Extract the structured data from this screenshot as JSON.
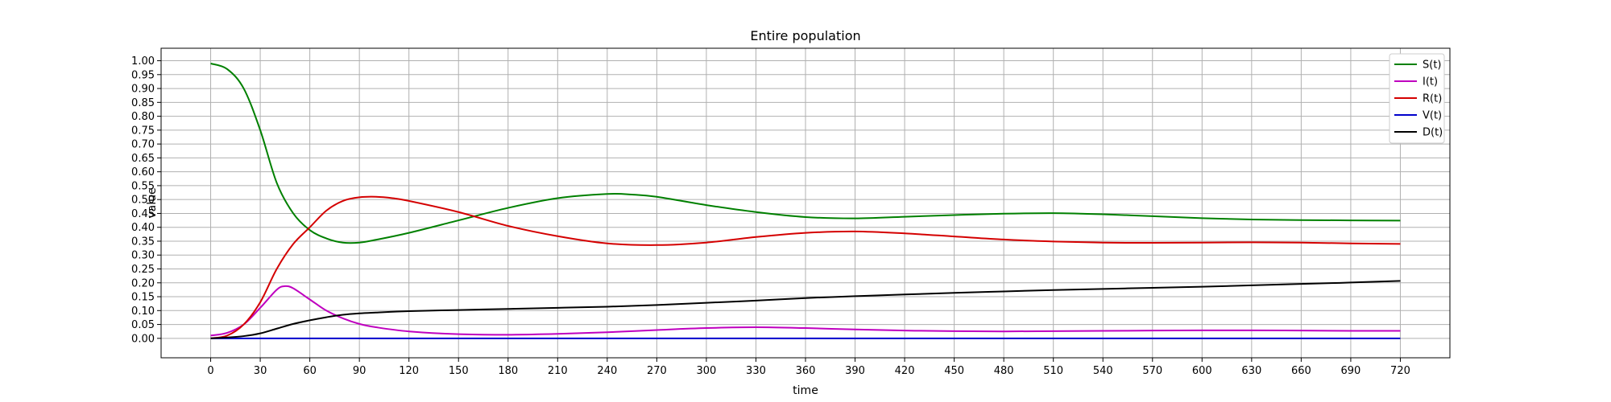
{
  "chart_data": {
    "type": "line",
    "title": "Entire population",
    "xlabel": "time",
    "ylabel": "value",
    "xlim": [
      -30,
      750
    ],
    "ylim": [
      -0.07,
      1.045
    ],
    "xticks": [
      0,
      30,
      60,
      90,
      120,
      150,
      180,
      210,
      240,
      270,
      300,
      330,
      360,
      390,
      420,
      450,
      480,
      510,
      540,
      570,
      600,
      630,
      660,
      690,
      720
    ],
    "yticks": [
      0.0,
      0.05,
      0.1,
      0.15,
      0.2,
      0.25,
      0.3,
      0.35,
      0.4,
      0.45,
      0.5,
      0.55,
      0.6,
      0.65,
      0.7,
      0.75,
      0.8,
      0.85,
      0.9,
      0.95,
      1.0
    ],
    "ytick_labels": [
      "0.00",
      "0.05",
      "0.10",
      "0.15",
      "0.20",
      "0.25",
      "0.30",
      "0.35",
      "0.40",
      "0.45",
      "0.50",
      "0.55",
      "0.60",
      "0.65",
      "0.70",
      "0.75",
      "0.80",
      "0.85",
      "0.90",
      "0.95",
      "1.00"
    ],
    "grid": true,
    "legend_position": "upper-right",
    "series": [
      {
        "name": "S(t)",
        "color": "#008000",
        "x": [
          0,
          10,
          20,
          30,
          40,
          50,
          60,
          70,
          80,
          90,
          100,
          120,
          150,
          180,
          210,
          240,
          255,
          270,
          300,
          330,
          360,
          390,
          420,
          450,
          480,
          510,
          540,
          570,
          600,
          630,
          660,
          690,
          720
        ],
        "y": [
          0.99,
          0.97,
          0.9,
          0.75,
          0.56,
          0.45,
          0.39,
          0.36,
          0.345,
          0.345,
          0.355,
          0.38,
          0.425,
          0.47,
          0.505,
          0.52,
          0.518,
          0.51,
          0.48,
          0.455,
          0.437,
          0.432,
          0.438,
          0.444,
          0.449,
          0.451,
          0.447,
          0.44,
          0.433,
          0.428,
          0.426,
          0.425,
          0.424
        ]
      },
      {
        "name": "I(t)",
        "color": "#bf00bf",
        "x": [
          0,
          10,
          20,
          30,
          40,
          45,
          50,
          60,
          70,
          80,
          90,
          100,
          120,
          150,
          180,
          210,
          240,
          270,
          300,
          330,
          360,
          390,
          420,
          450,
          480,
          510,
          540,
          570,
          600,
          630,
          660,
          690,
          720
        ],
        "y": [
          0.01,
          0.02,
          0.05,
          0.11,
          0.175,
          0.188,
          0.18,
          0.14,
          0.1,
          0.072,
          0.052,
          0.04,
          0.025,
          0.015,
          0.013,
          0.016,
          0.022,
          0.03,
          0.037,
          0.04,
          0.037,
          0.032,
          0.028,
          0.026,
          0.025,
          0.026,
          0.027,
          0.028,
          0.029,
          0.029,
          0.028,
          0.027,
          0.027
        ]
      },
      {
        "name": "R(t)",
        "color": "#d40000",
        "x": [
          0,
          10,
          20,
          30,
          40,
          50,
          60,
          70,
          80,
          90,
          100,
          110,
          120,
          150,
          180,
          210,
          240,
          270,
          300,
          330,
          360,
          390,
          420,
          450,
          480,
          510,
          540,
          570,
          600,
          630,
          660,
          690,
          720
        ],
        "y": [
          0.0,
          0.01,
          0.05,
          0.13,
          0.25,
          0.34,
          0.4,
          0.46,
          0.495,
          0.508,
          0.51,
          0.505,
          0.495,
          0.455,
          0.405,
          0.368,
          0.342,
          0.336,
          0.345,
          0.365,
          0.38,
          0.385,
          0.378,
          0.367,
          0.356,
          0.349,
          0.345,
          0.344,
          0.345,
          0.346,
          0.345,
          0.342,
          0.34
        ]
      },
      {
        "name": "V(t)",
        "color": "#0000cc",
        "x": [
          0,
          720
        ],
        "y": [
          0.0,
          0.0
        ]
      },
      {
        "name": "D(t)",
        "color": "#000000",
        "x": [
          0,
          10,
          20,
          30,
          40,
          50,
          60,
          70,
          80,
          90,
          100,
          120,
          150,
          180,
          210,
          240,
          270,
          300,
          330,
          360,
          390,
          420,
          450,
          480,
          510,
          540,
          570,
          600,
          630,
          660,
          690,
          720
        ],
        "y": [
          0.0,
          0.003,
          0.008,
          0.018,
          0.035,
          0.052,
          0.065,
          0.076,
          0.085,
          0.09,
          0.093,
          0.098,
          0.102,
          0.106,
          0.11,
          0.114,
          0.12,
          0.128,
          0.136,
          0.145,
          0.152,
          0.158,
          0.164,
          0.169,
          0.174,
          0.178,
          0.182,
          0.186,
          0.191,
          0.196,
          0.201,
          0.207
        ]
      }
    ]
  }
}
